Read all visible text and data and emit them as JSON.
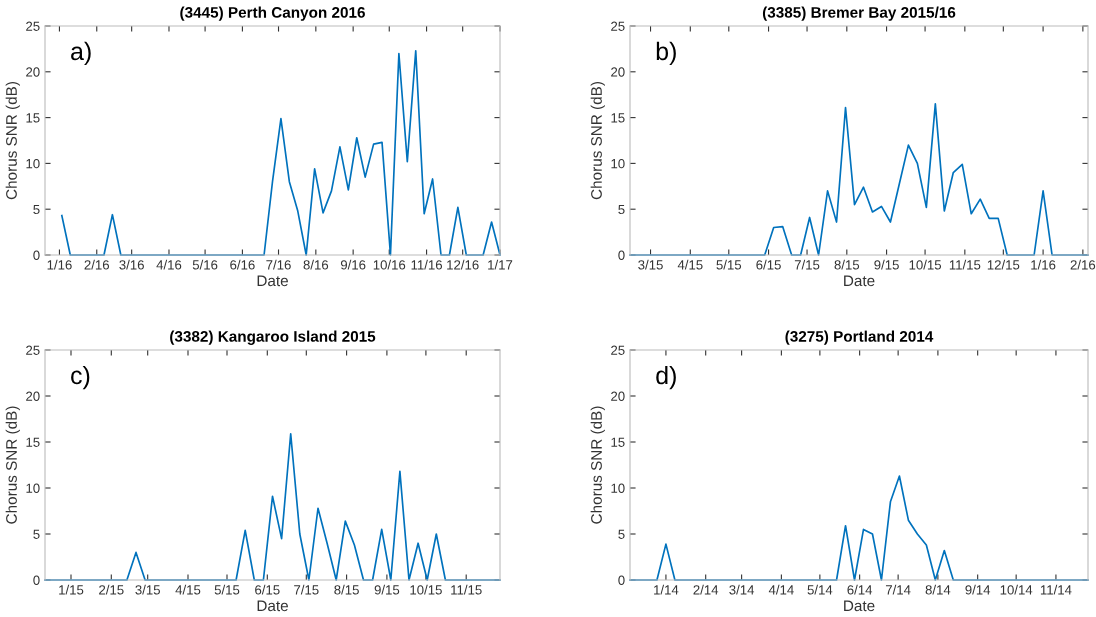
{
  "chart_data": [
    {
      "type": "line",
      "title": "(3445) Perth Canyon 2016",
      "xlabel": "Date",
      "ylabel": "Chorus SNR (dB)",
      "annotations": [
        "a)"
      ],
      "x": [
        "2016-01-03",
        "2016-01-10",
        "2016-01-17",
        "2016-01-24",
        "2016-01-31",
        "2016-02-07",
        "2016-02-14",
        "2016-02-21",
        "2016-02-28",
        "2016-03-06",
        "2016-03-13",
        "2016-03-20",
        "2016-03-27",
        "2016-04-03",
        "2016-04-10",
        "2016-04-17",
        "2016-04-24",
        "2016-05-01",
        "2016-05-08",
        "2016-05-15",
        "2016-05-22",
        "2016-05-29",
        "2016-06-05",
        "2016-06-12",
        "2016-06-19",
        "2016-06-26",
        "2016-07-03",
        "2016-07-10",
        "2016-07-17",
        "2016-07-24",
        "2016-07-31",
        "2016-08-07",
        "2016-08-14",
        "2016-08-21",
        "2016-08-28",
        "2016-09-04",
        "2016-09-11",
        "2016-09-18",
        "2016-09-25",
        "2016-10-02",
        "2016-10-09",
        "2016-10-16",
        "2016-10-23",
        "2016-10-30",
        "2016-11-06",
        "2016-11-13",
        "2016-11-20",
        "2016-11-27",
        "2016-12-04",
        "2016-12-11",
        "2016-12-18",
        "2016-12-25",
        "2017-01-01"
      ],
      "series": [
        {
          "color": "#0072bd",
          "values": [
            4.3,
            0,
            0,
            0,
            0,
            0,
            4.4,
            0,
            0,
            0,
            0,
            0,
            0,
            0,
            0,
            0,
            0,
            0,
            0,
            0,
            0,
            0,
            0,
            0,
            0,
            8,
            14.9,
            8,
            4.8,
            0,
            9.4,
            4.6,
            7,
            11.8,
            7.1,
            12.8,
            8.5,
            12.1,
            12.3,
            0,
            22,
            10.2,
            22.3,
            4.5,
            8.3,
            0,
            0,
            5.2,
            0,
            0,
            0,
            3.6,
            0
          ]
        }
      ],
      "xlim": [
        "2015-12-20",
        "2017-01-01"
      ],
      "xticks": [
        {
          "value": "2016-01-01",
          "label": "1/16"
        },
        {
          "value": "2016-02-01",
          "label": "2/16"
        },
        {
          "value": "2016-03-01",
          "label": "3/16"
        },
        {
          "value": "2016-04-01",
          "label": "4/16"
        },
        {
          "value": "2016-05-01",
          "label": "5/16"
        },
        {
          "value": "2016-06-01",
          "label": "6/16"
        },
        {
          "value": "2016-07-01",
          "label": "7/16"
        },
        {
          "value": "2016-08-01",
          "label": "8/16"
        },
        {
          "value": "2016-09-01",
          "label": "9/16"
        },
        {
          "value": "2016-10-01",
          "label": "10/16"
        },
        {
          "value": "2016-11-01",
          "label": "11/16"
        },
        {
          "value": "2016-12-01",
          "label": "12/16"
        },
        {
          "value": "2017-01-01",
          "label": "1/17"
        }
      ],
      "ylim": [
        0,
        25
      ],
      "yticks": [
        0,
        5,
        10,
        15,
        20,
        25
      ],
      "grid": false,
      "marker": "none",
      "line_style": "solid"
    },
    {
      "type": "line",
      "title": "(3385) Bremer Bay 2015/16",
      "xlabel": "Date",
      "ylabel": "Chorus SNR (dB)",
      "annotations": [
        "b)"
      ],
      "x": [
        "2015-02-13",
        "2015-02-20",
        "2015-02-27",
        "2015-03-06",
        "2015-03-13",
        "2015-03-20",
        "2015-03-27",
        "2015-04-03",
        "2015-04-10",
        "2015-04-17",
        "2015-04-24",
        "2015-05-01",
        "2015-05-08",
        "2015-05-15",
        "2015-05-22",
        "2015-05-29",
        "2015-06-05",
        "2015-06-12",
        "2015-06-19",
        "2015-06-26",
        "2015-07-03",
        "2015-07-10",
        "2015-07-17",
        "2015-07-24",
        "2015-07-31",
        "2015-08-07",
        "2015-08-14",
        "2015-08-21",
        "2015-08-28",
        "2015-09-04",
        "2015-09-11",
        "2015-09-18",
        "2015-09-25",
        "2015-10-02",
        "2015-10-09",
        "2015-10-16",
        "2015-10-23",
        "2015-10-30",
        "2015-11-06",
        "2015-11-13",
        "2015-11-20",
        "2015-11-27",
        "2015-12-04",
        "2015-12-11",
        "2015-12-18",
        "2015-12-25",
        "2016-01-01",
        "2016-01-08",
        "2016-01-15",
        "2016-01-22",
        "2016-01-29",
        "2016-02-05"
      ],
      "series": [
        {
          "color": "#0072bd",
          "values": [
            0,
            0,
            0,
            0,
            0,
            0,
            0,
            0,
            0,
            0,
            0,
            0,
            0,
            0,
            0,
            0,
            3.0,
            3.1,
            0,
            0,
            4.1,
            0,
            7,
            3.6,
            16.1,
            5.5,
            7.4,
            4.7,
            5.3,
            3.6,
            7.8,
            12,
            10,
            5.2,
            16.5,
            4.8,
            9,
            9.9,
            4.5,
            6.1,
            4.0,
            4.0,
            0,
            0,
            0,
            0,
            7,
            0,
            0,
            0,
            0,
            0
          ]
        }
      ],
      "xlim": [
        "2015-02-13",
        "2016-02-05"
      ],
      "xticks": [
        {
          "value": "2015-03-01",
          "label": "3/15"
        },
        {
          "value": "2015-04-01",
          "label": "4/15"
        },
        {
          "value": "2015-05-01",
          "label": "5/15"
        },
        {
          "value": "2015-06-01",
          "label": "6/15"
        },
        {
          "value": "2015-07-01",
          "label": "7/15"
        },
        {
          "value": "2015-08-01",
          "label": "8/15"
        },
        {
          "value": "2015-09-01",
          "label": "9/15"
        },
        {
          "value": "2015-10-01",
          "label": "10/15"
        },
        {
          "value": "2015-11-01",
          "label": "11/15"
        },
        {
          "value": "2015-12-01",
          "label": "12/15"
        },
        {
          "value": "2016-01-01",
          "label": "1/16"
        },
        {
          "value": "2016-02-01",
          "label": "2/16"
        }
      ],
      "ylim": [
        0,
        25
      ],
      "yticks": [
        0,
        5,
        10,
        15,
        20,
        25
      ],
      "grid": false,
      "marker": "none",
      "line_style": "solid"
    },
    {
      "type": "line",
      "title": "(3382) Kangaroo Island 2015",
      "xlabel": "Date",
      "ylabel": "Chorus SNR (dB)",
      "annotations": [
        "c)"
      ],
      "x": [
        "2014-12-12",
        "2014-12-19",
        "2014-12-26",
        "2015-01-02",
        "2015-01-09",
        "2015-01-16",
        "2015-01-23",
        "2015-01-30",
        "2015-02-06",
        "2015-02-13",
        "2015-02-20",
        "2015-02-27",
        "2015-03-06",
        "2015-03-13",
        "2015-03-20",
        "2015-03-27",
        "2015-04-03",
        "2015-04-10",
        "2015-04-17",
        "2015-04-24",
        "2015-05-01",
        "2015-05-08",
        "2015-05-15",
        "2015-05-22",
        "2015-05-29",
        "2015-06-05",
        "2015-06-12",
        "2015-06-19",
        "2015-06-26",
        "2015-07-03",
        "2015-07-10",
        "2015-07-17",
        "2015-07-24",
        "2015-07-31",
        "2015-08-07",
        "2015-08-14",
        "2015-08-21",
        "2015-08-28",
        "2015-09-04",
        "2015-09-11",
        "2015-09-18",
        "2015-09-25",
        "2015-10-02",
        "2015-10-09",
        "2015-10-16",
        "2015-10-23",
        "2015-10-30",
        "2015-11-06",
        "2015-11-13",
        "2015-11-20",
        "2015-11-27"
      ],
      "series": [
        {
          "color": "#0072bd",
          "values": [
            0,
            0,
            0,
            0,
            0,
            0,
            0,
            0,
            0,
            0,
            3.0,
            0,
            0,
            0,
            0,
            0,
            0,
            0,
            0,
            0,
            0,
            0,
            5.4,
            0,
            0,
            9.1,
            4.5,
            15.9,
            5,
            0,
            7.8,
            4,
            0,
            6.4,
            3.8,
            0,
            0,
            5.5,
            0,
            11.8,
            0,
            4,
            0,
            5,
            0,
            0,
            0,
            0,
            0,
            0,
            0
          ]
        }
      ],
      "xlim": [
        "2014-12-12",
        "2015-11-27"
      ],
      "xticks": [
        {
          "value": "2015-01-01",
          "label": "1/15"
        },
        {
          "value": "2015-02-01",
          "label": "2/15"
        },
        {
          "value": "2015-03-01",
          "label": "3/15"
        },
        {
          "value": "2015-04-01",
          "label": "4/15"
        },
        {
          "value": "2015-05-01",
          "label": "5/15"
        },
        {
          "value": "2015-06-01",
          "label": "6/15"
        },
        {
          "value": "2015-07-01",
          "label": "7/15"
        },
        {
          "value": "2015-08-01",
          "label": "8/15"
        },
        {
          "value": "2015-09-01",
          "label": "9/15"
        },
        {
          "value": "2015-10-01",
          "label": "10/15"
        },
        {
          "value": "2015-11-01",
          "label": "11/15"
        }
      ],
      "ylim": [
        0,
        25
      ],
      "yticks": [
        0,
        5,
        10,
        15,
        20,
        25
      ],
      "grid": false,
      "marker": "none",
      "line_style": "solid"
    },
    {
      "type": "line",
      "title": "(3275) Portland 2014",
      "xlabel": "Date",
      "ylabel": "Chorus SNR (dB)",
      "annotations": [
        "d)"
      ],
      "x": [
        "2013-12-04",
        "2013-12-11",
        "2013-12-18",
        "2013-12-25",
        "2014-01-01",
        "2014-01-08",
        "2014-01-15",
        "2014-01-22",
        "2014-01-29",
        "2014-02-05",
        "2014-02-12",
        "2014-02-19",
        "2014-02-26",
        "2014-03-05",
        "2014-03-12",
        "2014-03-19",
        "2014-03-26",
        "2014-04-02",
        "2014-04-09",
        "2014-04-16",
        "2014-04-23",
        "2014-04-30",
        "2014-05-07",
        "2014-05-14",
        "2014-05-21",
        "2014-05-28",
        "2014-06-04",
        "2014-06-11",
        "2014-06-18",
        "2014-06-25",
        "2014-07-02",
        "2014-07-09",
        "2014-07-16",
        "2014-07-23",
        "2014-07-30",
        "2014-08-06",
        "2014-08-13",
        "2014-08-20",
        "2014-08-27",
        "2014-09-03",
        "2014-09-10",
        "2014-09-17",
        "2014-09-24",
        "2014-10-01",
        "2014-10-08",
        "2014-10-15",
        "2014-10-22",
        "2014-10-29",
        "2014-11-05",
        "2014-11-12",
        "2014-11-19",
        "2014-11-26"
      ],
      "series": [
        {
          "color": "#0072bd",
          "values": [
            0,
            0,
            0,
            0,
            3.9,
            0,
            0,
            0,
            0,
            0,
            0,
            0,
            0,
            0,
            0,
            0,
            0,
            0,
            0,
            0,
            0,
            0,
            0,
            0,
            5.9,
            0,
            5.5,
            5,
            0,
            8.5,
            11.3,
            6.5,
            5,
            3.8,
            0,
            3.2,
            0,
            0,
            0,
            0,
            0,
            0,
            0,
            0,
            0,
            0,
            0,
            0,
            0,
            0,
            0,
            0
          ]
        }
      ],
      "xlim": [
        "2013-12-04",
        "2014-11-26"
      ],
      "xticks": [
        {
          "value": "2014-01-01",
          "label": "1/14"
        },
        {
          "value": "2014-02-01",
          "label": "2/14"
        },
        {
          "value": "2014-03-01",
          "label": "3/14"
        },
        {
          "value": "2014-04-01",
          "label": "4/14"
        },
        {
          "value": "2014-05-01",
          "label": "5/14"
        },
        {
          "value": "2014-06-01",
          "label": "6/14"
        },
        {
          "value": "2014-07-01",
          "label": "7/14"
        },
        {
          "value": "2014-08-01",
          "label": "8/14"
        },
        {
          "value": "2014-09-01",
          "label": "9/14"
        },
        {
          "value": "2014-10-01",
          "label": "10/14"
        },
        {
          "value": "2014-11-01",
          "label": "11/14"
        }
      ],
      "ylim": [
        0,
        25
      ],
      "yticks": [
        0,
        5,
        10,
        15,
        20,
        25
      ],
      "grid": false,
      "marker": "none",
      "line_style": "solid"
    }
  ]
}
